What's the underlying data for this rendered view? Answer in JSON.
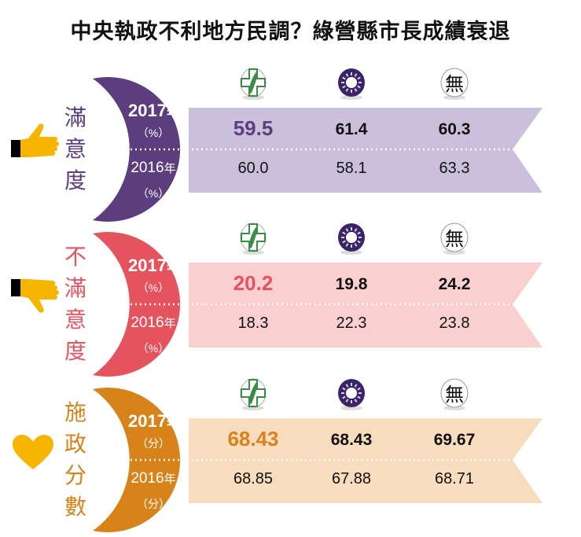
{
  "title": "中央執政不利地方民調？綠營縣市長成績衰退",
  "colors": {
    "satisfaction": "#5c3d7e",
    "satisfaction_band": "#cbc0dc",
    "dissatisfaction": "#e5535f",
    "dissatisfaction_band": "#f9cfd0",
    "score": "#d8831a",
    "score_band": "#f7dcbd"
  },
  "party_icons": [
    "dpp-icon",
    "kmt-icon",
    "independent-icon"
  ],
  "independent_char": "無",
  "chart_data": {
    "type": "table",
    "title": "中央執政不利地方民調？綠營縣市長成績衰退",
    "columns": [
      "民進黨",
      "國民黨",
      "無黨籍"
    ],
    "sections": [
      {
        "label": "滿意度",
        "label_chars": [
          "滿",
          "意",
          "度"
        ],
        "year_2017": "2017",
        "year_2016": "2016",
        "year_suffix": "年",
        "unit": "（%）",
        "values_2017": [
          "59.5",
          "61.4",
          "60.3"
        ],
        "values_2016": [
          "60.0",
          "58.1",
          "63.3"
        ]
      },
      {
        "label": "不滿意度",
        "label_chars": [
          "不",
          "滿",
          "意",
          "度"
        ],
        "year_2017": "2017",
        "year_2016": "2016",
        "year_suffix": "年",
        "unit": "（%）",
        "values_2017": [
          "20.2",
          "19.8",
          "24.2"
        ],
        "values_2016": [
          "18.3",
          "22.3",
          "23.8"
        ]
      },
      {
        "label": "施政分數",
        "label_chars": [
          "施",
          "政",
          "分",
          "數"
        ],
        "year_2017": "2017",
        "year_2016": "2016",
        "year_suffix": "年",
        "unit": "（分）",
        "values_2017": [
          "68.43",
          "68.43",
          "69.67"
        ],
        "values_2016": [
          "68.85",
          "67.88",
          "68.71"
        ]
      }
    ]
  }
}
